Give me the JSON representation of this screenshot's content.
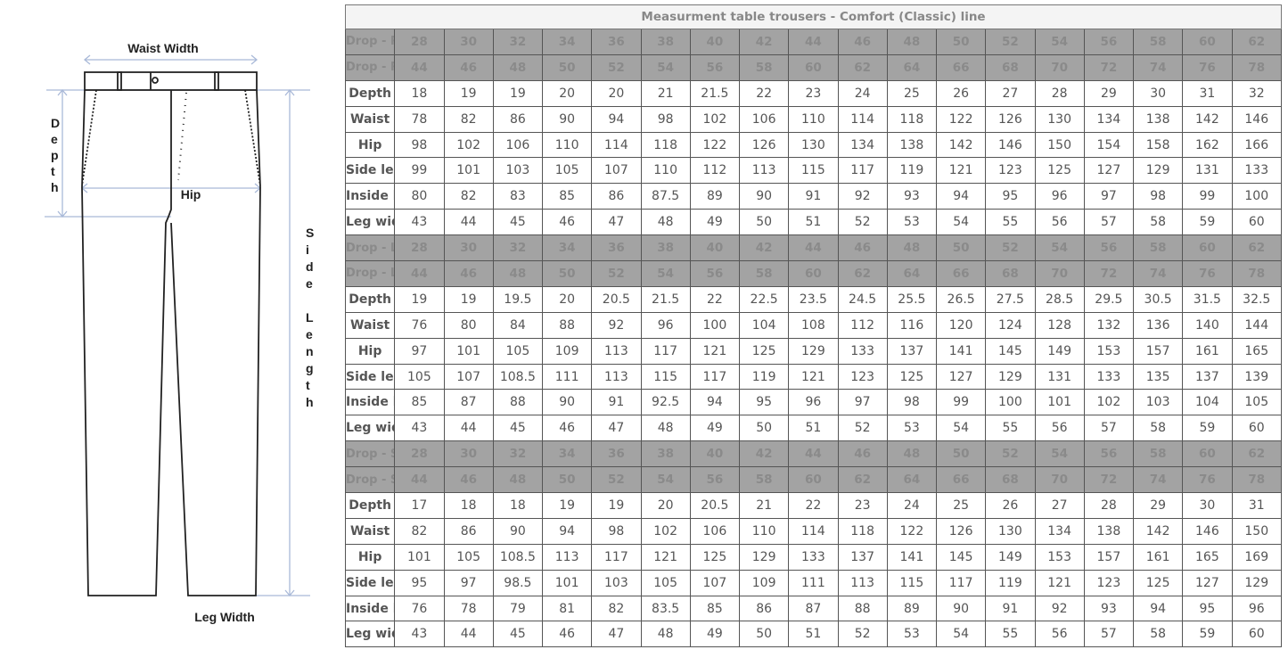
{
  "diagram": {
    "labels": {
      "waist_width": "Waist Width",
      "depth": "Depth",
      "hip": "Hip",
      "side_length": "Side Length",
      "leg_width": "Leg Width"
    },
    "colors": {
      "outline": "#222222",
      "guides": "#a9b9d8"
    }
  },
  "table": {
    "title": "Measurment table trousers - Comfort (Classic) line",
    "sections": [
      {
        "us_label": "Drop - Regular (US Size)",
        "us_sizes": [
          "28",
          "30",
          "32",
          "34",
          "36",
          "38",
          "40",
          "42",
          "44",
          "46",
          "48",
          "50",
          "52",
          "54",
          "56",
          "58",
          "60",
          "62"
        ],
        "eu_label": "Drop - Regular (European Size)",
        "eu_sizes": [
          "44",
          "46",
          "48",
          "50",
          "52",
          "54",
          "56",
          "58",
          "60",
          "62",
          "64",
          "66",
          "68",
          "70",
          "72",
          "74",
          "76",
          "78"
        ],
        "rows": [
          {
            "label": "Depth",
            "values": [
              "18",
              "19",
              "19",
              "20",
              "20",
              "21",
              "21.5",
              "22",
              "23",
              "24",
              "25",
              "26",
              "27",
              "28",
              "29",
              "30",
              "31",
              "32"
            ]
          },
          {
            "label": "Waist",
            "values": [
              "78",
              "82",
              "86",
              "90",
              "94",
              "98",
              "102",
              "106",
              "110",
              "114",
              "118",
              "122",
              "126",
              "130",
              "134",
              "138",
              "142",
              "146"
            ]
          },
          {
            "label": "Hip",
            "values": [
              "98",
              "102",
              "106",
              "110",
              "114",
              "118",
              "122",
              "126",
              "130",
              "134",
              "138",
              "142",
              "146",
              "150",
              "154",
              "158",
              "162",
              "166"
            ]
          },
          {
            "label": "Side length",
            "values": [
              "99",
              "101",
              "103",
              "105",
              "107",
              "110",
              "112",
              "113",
              "115",
              "117",
              "119",
              "121",
              "123",
              "125",
              "127",
              "129",
              "131",
              "133"
            ]
          },
          {
            "label": "Inside length",
            "values": [
              "80",
              "82",
              "83",
              "85",
              "86",
              "87.5",
              "89",
              "90",
              "91",
              "92",
              "93",
              "94",
              "95",
              "96",
              "97",
              "98",
              "99",
              "100"
            ]
          },
          {
            "label": "Leg width",
            "values": [
              "43",
              "44",
              "45",
              "46",
              "47",
              "48",
              "49",
              "50",
              "51",
              "52",
              "53",
              "54",
              "55",
              "56",
              "57",
              "58",
              "59",
              "60"
            ]
          }
        ]
      },
      {
        "us_label": "Drop - Long (US Size)",
        "us_sizes": [
          "28",
          "30",
          "32",
          "34",
          "36",
          "38",
          "40",
          "42",
          "44",
          "46",
          "48",
          "50",
          "52",
          "54",
          "56",
          "58",
          "60",
          "62"
        ],
        "eu_label": "Drop - Long (European Size)",
        "eu_sizes": [
          "44",
          "46",
          "48",
          "50",
          "52",
          "54",
          "56",
          "58",
          "60",
          "62",
          "64",
          "66",
          "68",
          "70",
          "72",
          "74",
          "76",
          "78"
        ],
        "rows": [
          {
            "label": "Depth",
            "values": [
              "19",
              "19",
              "19.5",
              "20",
              "20.5",
              "21.5",
              "22",
              "22.5",
              "23.5",
              "24.5",
              "25.5",
              "26.5",
              "27.5",
              "28.5",
              "29.5",
              "30.5",
              "31.5",
              "32.5"
            ]
          },
          {
            "label": "Waist",
            "values": [
              "76",
              "80",
              "84",
              "88",
              "92",
              "96",
              "100",
              "104",
              "108",
              "112",
              "116",
              "120",
              "124",
              "128",
              "132",
              "136",
              "140",
              "144"
            ]
          },
          {
            "label": "Hip",
            "values": [
              "97",
              "101",
              "105",
              "109",
              "113",
              "117",
              "121",
              "125",
              "129",
              "133",
              "137",
              "141",
              "145",
              "149",
              "153",
              "157",
              "161",
              "165"
            ]
          },
          {
            "label": "Side length",
            "values": [
              "105",
              "107",
              "108.5",
              "111",
              "113",
              "115",
              "117",
              "119",
              "121",
              "123",
              "125",
              "127",
              "129",
              "131",
              "133",
              "135",
              "137",
              "139"
            ]
          },
          {
            "label": "Inside length",
            "values": [
              "85",
              "87",
              "88",
              "90",
              "91",
              "92.5",
              "94",
              "95",
              "96",
              "97",
              "98",
              "99",
              "100",
              "101",
              "102",
              "103",
              "104",
              "105"
            ]
          },
          {
            "label": "Leg width",
            "values": [
              "43",
              "44",
              "45",
              "46",
              "47",
              "48",
              "49",
              "50",
              "51",
              "52",
              "53",
              "54",
              "55",
              "56",
              "57",
              "58",
              "59",
              "60"
            ]
          }
        ]
      },
      {
        "us_label": "Drop - Short (US Size)",
        "us_sizes": [
          "28",
          "30",
          "32",
          "34",
          "36",
          "38",
          "40",
          "42",
          "44",
          "46",
          "48",
          "50",
          "52",
          "54",
          "56",
          "58",
          "60",
          "62"
        ],
        "eu_label": "Drop - Short (European Size)",
        "eu_sizes": [
          "44",
          "46",
          "48",
          "50",
          "52",
          "54",
          "56",
          "58",
          "60",
          "62",
          "64",
          "66",
          "68",
          "70",
          "72",
          "74",
          "76",
          "78"
        ],
        "rows": [
          {
            "label": "Depth",
            "values": [
              "17",
              "18",
              "18",
              "19",
              "19",
              "20",
              "20.5",
              "21",
              "22",
              "23",
              "24",
              "25",
              "26",
              "27",
              "28",
              "29",
              "30",
              "31"
            ]
          },
          {
            "label": "Waist",
            "values": [
              "82",
              "86",
              "90",
              "94",
              "98",
              "102",
              "106",
              "110",
              "114",
              "118",
              "122",
              "126",
              "130",
              "134",
              "138",
              "142",
              "146",
              "150"
            ]
          },
          {
            "label": "Hip",
            "values": [
              "101",
              "105",
              "108.5",
              "113",
              "117",
              "121",
              "125",
              "129",
              "133",
              "137",
              "141",
              "145",
              "149",
              "153",
              "157",
              "161",
              "165",
              "169"
            ]
          },
          {
            "label": "Side length",
            "values": [
              "95",
              "97",
              "98.5",
              "101",
              "103",
              "105",
              "107",
              "109",
              "111",
              "113",
              "115",
              "117",
              "119",
              "121",
              "123",
              "125",
              "127",
              "129"
            ]
          },
          {
            "label": "Inside length",
            "values": [
              "76",
              "78",
              "79",
              "81",
              "82",
              "83.5",
              "85",
              "86",
              "87",
              "88",
              "89",
              "90",
              "91",
              "92",
              "93",
              "94",
              "95",
              "96"
            ]
          },
          {
            "label": "Leg width",
            "values": [
              "43",
              "44",
              "45",
              "46",
              "47",
              "48",
              "49",
              "50",
              "51",
              "52",
              "53",
              "54",
              "55",
              "56",
              "57",
              "58",
              "59",
              "60"
            ]
          }
        ]
      }
    ]
  }
}
